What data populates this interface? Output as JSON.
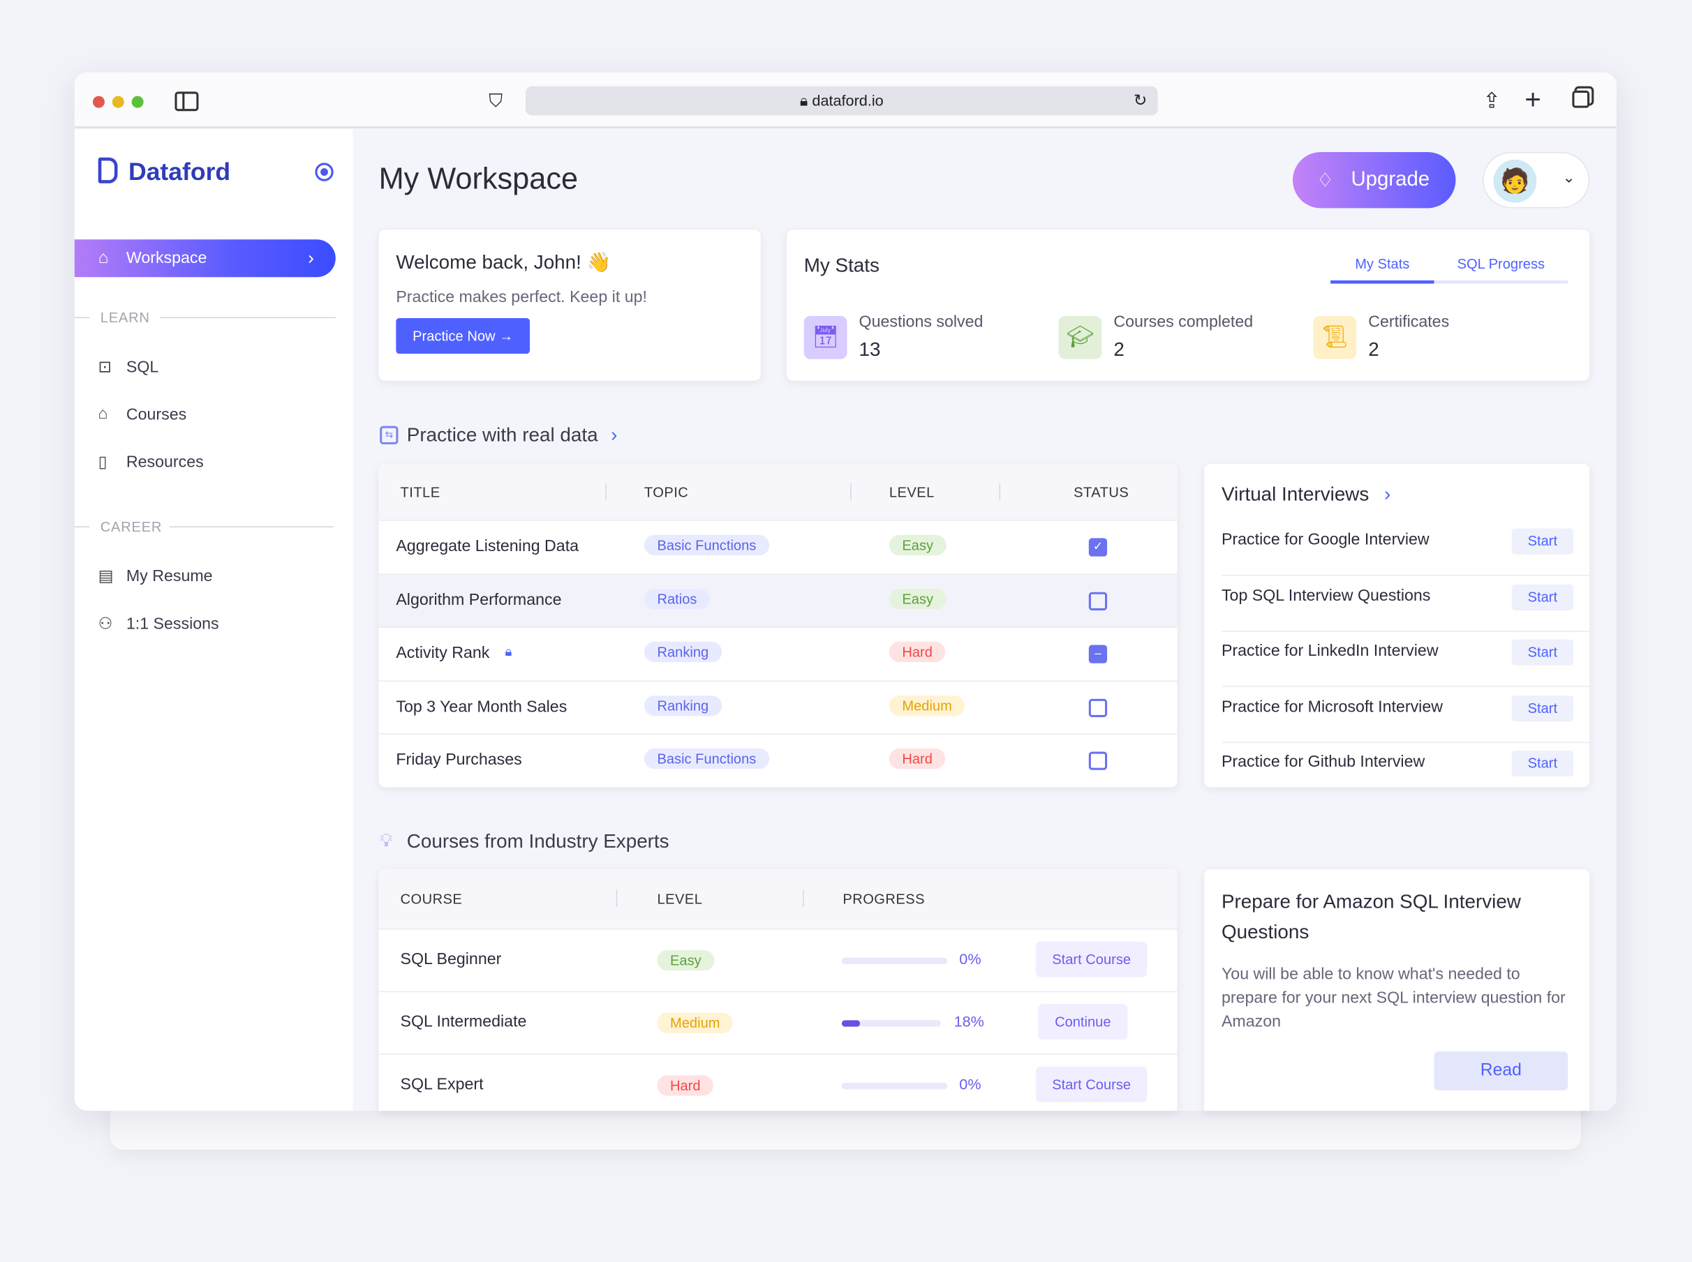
{
  "browser": {
    "url": "dataford.io"
  },
  "sidebar": {
    "brand": "Dataford",
    "active": "Workspace",
    "learn_label": "LEARN",
    "career_label": "CAREER",
    "learn": [
      {
        "label": "SQL",
        "icon": "code-window-icon"
      },
      {
        "label": "Courses",
        "icon": "graduation-cap-icon"
      },
      {
        "label": "Resources",
        "icon": "book-icon"
      }
    ],
    "career": [
      {
        "label": "My Resume",
        "icon": "document-icon"
      },
      {
        "label": "1:1 Sessions",
        "icon": "users-icon"
      }
    ]
  },
  "header": {
    "title": "My Workspace",
    "upgrade": "Upgrade"
  },
  "welcome": {
    "title": "Welcome back,  John! 👋",
    "subtitle": "Practice makes perfect. Keep it up!",
    "button": "Practice Now →"
  },
  "stats": {
    "title": "My Stats",
    "tabs": [
      "My Stats",
      "SQL Progress"
    ],
    "active_tab": "My Stats",
    "items": [
      {
        "label": "Questions solved",
        "value": "13",
        "color": "#7c5cf0",
        "bg": "#d9ccff"
      },
      {
        "label": "Courses completed",
        "value": "2",
        "color": "#5da03d",
        "bg": "#e3f0d9"
      },
      {
        "label": "Certificates",
        "value": "2",
        "color": "#f0a800",
        "bg": "#fff0c8"
      }
    ]
  },
  "practice": {
    "title": "Practice with real data",
    "columns": [
      "TITLE",
      "TOPIC",
      "LEVEL",
      "STATUS"
    ],
    "rows": [
      {
        "title": "Aggregate Listening Data",
        "topic": "Basic Functions",
        "level": "Easy",
        "status": "checked"
      },
      {
        "title": "Algorithm Performance",
        "topic": "Ratios",
        "level": "Easy",
        "status": "unchecked"
      },
      {
        "title": "Activity Rank",
        "topic": "Ranking",
        "level": "Hard",
        "status": "indeterminate",
        "locked": true
      },
      {
        "title": "Top 3 Year Month Sales",
        "topic": "Ranking",
        "level": "Medium",
        "status": "unchecked"
      },
      {
        "title": "Friday Purchases",
        "topic": "Basic Functions",
        "level": "Hard",
        "status": "unchecked"
      }
    ]
  },
  "interviews": {
    "title": "Virtual Interviews",
    "items": [
      {
        "label": "Practice for Google Interview",
        "button": "Start"
      },
      {
        "label": "Top SQL Interview Questions",
        "button": "Start"
      },
      {
        "label": "Practice for LinkedIn Interview",
        "button": "Start"
      },
      {
        "label": "Practice for Microsoft Interview",
        "button": "Start"
      },
      {
        "label": "Practice for Github Interview",
        "button": "Start"
      }
    ]
  },
  "courses": {
    "title": "Courses from Industry Experts",
    "columns": [
      "COURSE",
      "LEVEL",
      "PROGRESS"
    ],
    "rows": [
      {
        "name": "SQL Beginner",
        "level": "Easy",
        "progress": 0,
        "progress_label": "0%",
        "button": "Start Course"
      },
      {
        "name": "SQL Intermediate",
        "level": "Medium",
        "progress": 18,
        "progress_label": "18%",
        "button": "Continue"
      },
      {
        "name": "SQL Expert",
        "level": "Hard",
        "progress": 0,
        "progress_label": "0%",
        "button": "Start Course"
      }
    ]
  },
  "amazon": {
    "title": "Prepare for Amazon SQL Interview Questions",
    "body": "You will be able to know what's needed to prepare for your next SQL interview question for Amazon",
    "button": "Read"
  }
}
